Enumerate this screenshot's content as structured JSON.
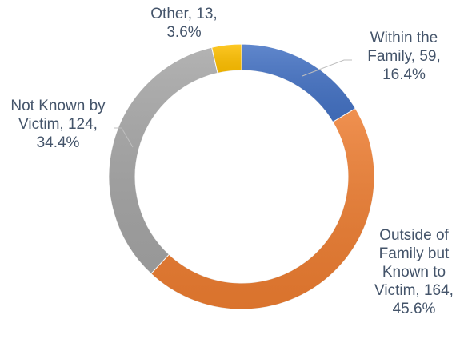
{
  "chart_data": {
    "type": "donut",
    "categories": [
      "Within the Family",
      "Outside of Family but Known to Victim",
      "Not Known by Victim",
      "Other"
    ],
    "values": [
      59,
      164,
      124,
      13
    ],
    "value_labels": [
      "Within the Family, 59, 16.4%",
      "Outside of Family but Known to Victim, 164, 45.6%",
      "Not Known by Victim, 124, 34.4%",
      "Other, 13, 3.6%"
    ],
    "colors": [
      "#4472c4",
      "#ed7d31",
      "#a5a5a5",
      "#ffc000"
    ]
  }
}
